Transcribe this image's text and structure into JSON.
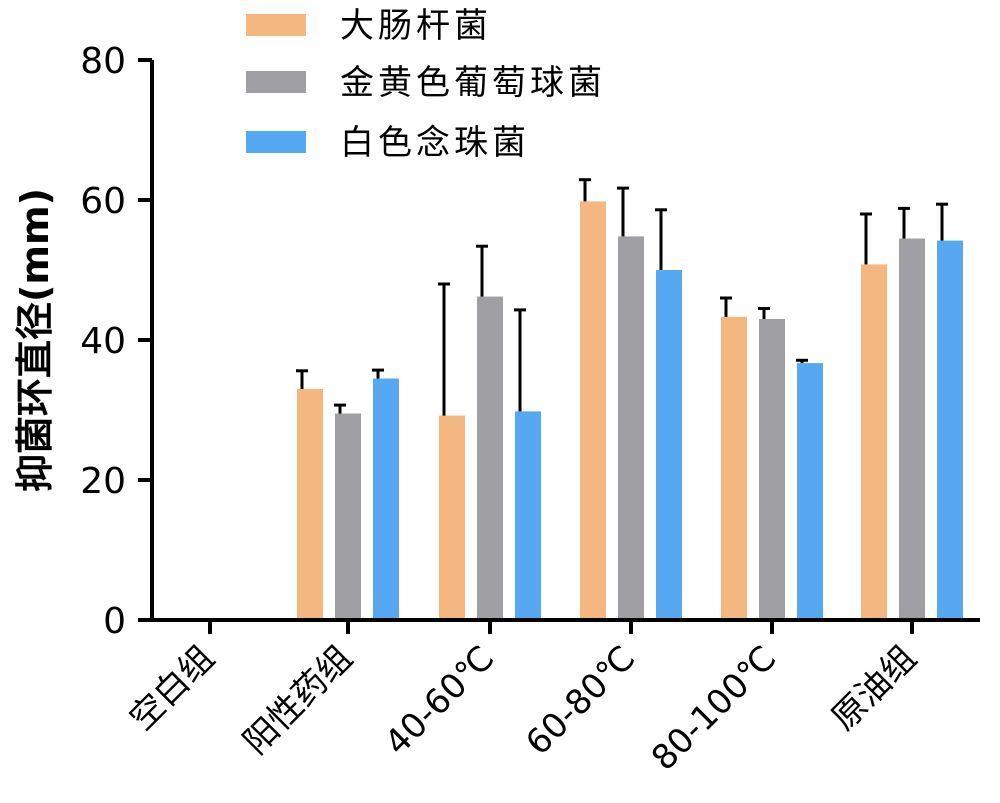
{
  "chart_data": {
    "type": "bar",
    "categories": [
      "空白组",
      "阳性药组",
      "40-60℃",
      "60-80℃",
      "80-100℃",
      "原油组"
    ],
    "series": [
      {
        "name": "大肠杆菌",
        "color": "#F4B77F",
        "values": [
          0,
          33.0,
          29.2,
          59.8,
          43.3,
          50.8
        ],
        "errors": [
          0,
          2.6,
          18.8,
          3.1,
          2.7,
          7.2
        ]
      },
      {
        "name": "金黄色葡萄球菌",
        "color": "#A0A0A4",
        "values": [
          0,
          29.5,
          46.2,
          54.8,
          43.0,
          54.5
        ],
        "errors": [
          0,
          1.2,
          7.2,
          6.9,
          1.5,
          4.3
        ]
      },
      {
        "name": "白色念珠菌",
        "color": "#57A8F2",
        "values": [
          0,
          34.5,
          29.8,
          50.0,
          36.7,
          54.2
        ],
        "errors": [
          0,
          1.2,
          14.5,
          8.6,
          0.4,
          5.2
        ]
      }
    ],
    "ylabel": "抑菌环直径(mm)",
    "xlabel": "",
    "ylim": [
      0,
      80
    ],
    "yticks": [
      0,
      20,
      40,
      60,
      80
    ],
    "grid": false,
    "legend_position": "top-center"
  }
}
